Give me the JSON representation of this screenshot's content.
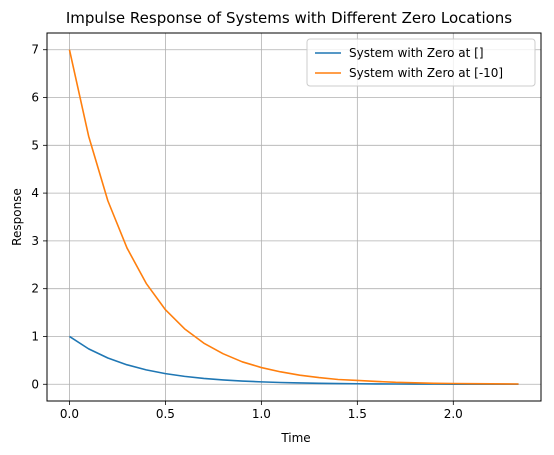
{
  "chart_data": {
    "type": "line",
    "title": "Impulse Response of Systems with Different Zero Locations",
    "xlabel": "Time",
    "ylabel": "Response",
    "xlim": [
      -0.117,
      2.457
    ],
    "ylim": [
      -0.35,
      7.35
    ],
    "xticks": [
      0.0,
      0.5,
      1.0,
      1.5,
      2.0
    ],
    "xtick_labels": [
      "0.0",
      "0.5",
      "1.0",
      "1.5",
      "2.0"
    ],
    "yticks": [
      0,
      1,
      2,
      3,
      4,
      5,
      6,
      7
    ],
    "ytick_labels": [
      "0",
      "1",
      "2",
      "3",
      "4",
      "5",
      "6",
      "7"
    ],
    "grid": true,
    "legend_position": "top-right",
    "series": [
      {
        "name": "System with Zero at []",
        "color": "#1f77b4",
        "x": [
          0.0,
          0.1,
          0.2,
          0.3,
          0.4,
          0.5,
          0.6,
          0.7,
          0.8,
          0.9,
          1.0,
          1.1,
          1.2,
          1.3,
          1.4,
          1.5,
          1.6,
          1.7,
          1.8,
          1.9,
          2.0,
          2.1,
          2.2,
          2.34
        ],
        "y": [
          1.0,
          0.741,
          0.549,
          0.407,
          0.301,
          0.223,
          0.165,
          0.122,
          0.091,
          0.067,
          0.05,
          0.037,
          0.027,
          0.02,
          0.015,
          0.011,
          0.008,
          0.006,
          0.005,
          0.003,
          0.002,
          0.002,
          0.001,
          0.001
        ]
      },
      {
        "name": "System with Zero at [-10]",
        "color": "#ff7f0e",
        "x": [
          0.0,
          0.1,
          0.2,
          0.3,
          0.4,
          0.5,
          0.6,
          0.7,
          0.8,
          0.9,
          1.0,
          1.1,
          1.2,
          1.3,
          1.4,
          1.5,
          1.6,
          1.7,
          1.8,
          1.9,
          2.0,
          2.1,
          2.2,
          2.34
        ],
        "y": [
          7.0,
          5.19,
          3.84,
          2.85,
          2.11,
          1.56,
          1.16,
          0.86,
          0.64,
          0.47,
          0.35,
          0.26,
          0.19,
          0.14,
          0.1,
          0.08,
          0.06,
          0.04,
          0.03,
          0.02,
          0.016,
          0.012,
          0.009,
          0.006
        ]
      }
    ]
  }
}
